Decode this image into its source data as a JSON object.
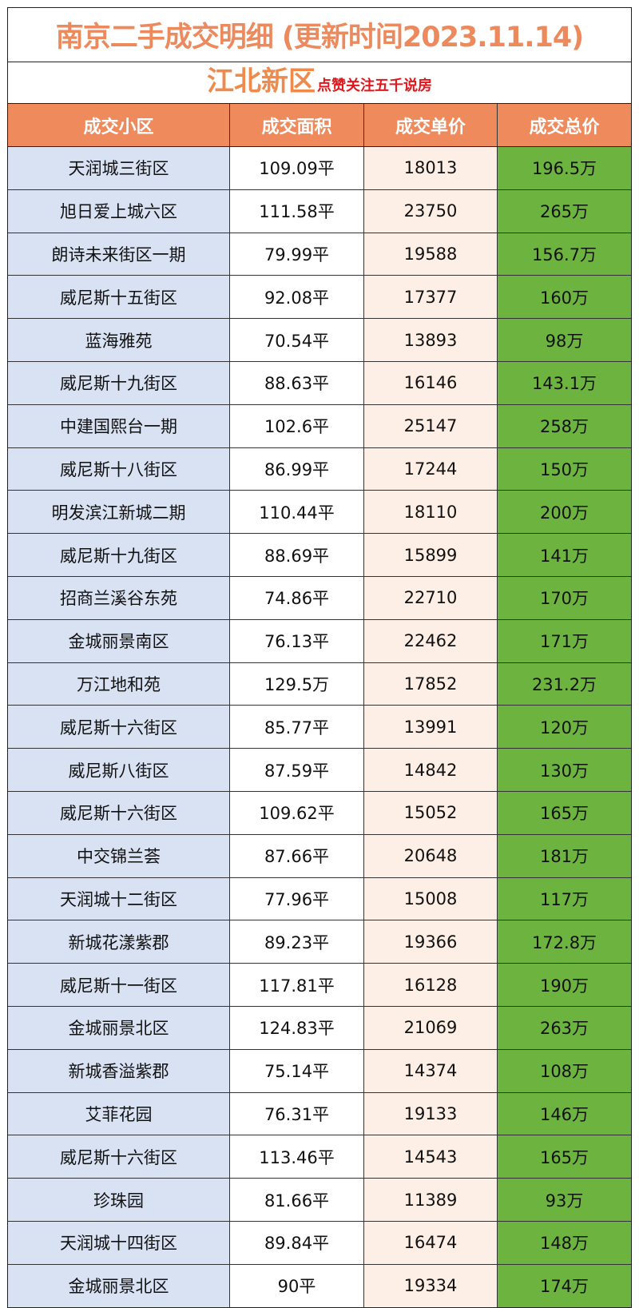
{
  "title": "南京二手成交明细 (更新时间2023.11.14)",
  "subtitle": {
    "district": "江北新区",
    "slogan": "点赞关注五千说房"
  },
  "colors": {
    "title": "#ec8a5e",
    "header_bg": "#ef8a5c",
    "name_col": "#d9e2f3",
    "price_col": "#fdeee6",
    "total_col": "#6db33f",
    "slogan": "#e3161b"
  },
  "headers": [
    "成交小区",
    "成交面积",
    "成交单价",
    "成交总价"
  ],
  "rows": [
    [
      "天润城三街区",
      "109.09平",
      "18013",
      "196.5万"
    ],
    [
      "旭日爱上城六区",
      "111.58平",
      "23750",
      "265万"
    ],
    [
      "朗诗未来街区一期",
      "79.99平",
      "19588",
      "156.7万"
    ],
    [
      "威尼斯十五街区",
      "92.08平",
      "17377",
      "160万"
    ],
    [
      "蓝海雅苑",
      "70.54平",
      "13893",
      "98万"
    ],
    [
      "威尼斯十九街区",
      "88.63平",
      "16146",
      "143.1万"
    ],
    [
      "中建国熙台一期",
      "102.6平",
      "25147",
      "258万"
    ],
    [
      "威尼斯十八街区",
      "86.99平",
      "17244",
      "150万"
    ],
    [
      "明发滨江新城二期",
      "110.44平",
      "18110",
      "200万"
    ],
    [
      "威尼斯十九街区",
      "88.69平",
      "15899",
      "141万"
    ],
    [
      "招商兰溪谷东苑",
      "74.86平",
      "22710",
      "170万"
    ],
    [
      "金城丽景南区",
      "76.13平",
      "22462",
      "171万"
    ],
    [
      "万江地和苑",
      "129.5万",
      "17852",
      "231.2万"
    ],
    [
      "威尼斯十六街区",
      "85.77平",
      "13991",
      "120万"
    ],
    [
      "威尼斯八街区",
      "87.59平",
      "14842",
      "130万"
    ],
    [
      "威尼斯十六街区",
      "109.62平",
      "15052",
      "165万"
    ],
    [
      "中交锦兰荟",
      "87.66平",
      "20648",
      "181万"
    ],
    [
      "天润城十二街区",
      "77.96平",
      "15008",
      "117万"
    ],
    [
      "新城花漾紫郡",
      "89.23平",
      "19366",
      "172.8万"
    ],
    [
      "威尼斯十一街区",
      "117.81平",
      "16128",
      "190万"
    ],
    [
      "金城丽景北区",
      "124.83平",
      "21069",
      "263万"
    ],
    [
      "新城香溢紫郡",
      "75.14平",
      "14374",
      "108万"
    ],
    [
      "艾菲花园",
      "76.31平",
      "19133",
      "146万"
    ],
    [
      "威尼斯十六街区",
      "113.46平",
      "14543",
      "165万"
    ],
    [
      "珍珠园",
      "81.66平",
      "11389",
      "93万"
    ],
    [
      "天润城十四街区",
      "89.84平",
      "16474",
      "148万"
    ],
    [
      "金城丽景北区",
      "90平",
      "19334",
      "174万"
    ]
  ]
}
